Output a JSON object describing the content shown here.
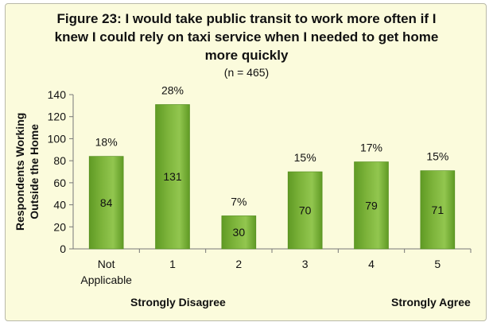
{
  "chart_data": {
    "type": "bar",
    "title_lines": [
      "Figure 23:  I would take public transit to work more often if I",
      "knew I could rely on taxi service when I needed to get home",
      "more quickly"
    ],
    "subtitle": "(n = 465)",
    "ylabel_lines": [
      "Respondents Working",
      "Outside the Home"
    ],
    "xlabel": "",
    "ylim": [
      0,
      140
    ],
    "yticks": [
      0,
      20,
      40,
      60,
      80,
      100,
      120,
      140
    ],
    "categories": [
      "Not Applicable",
      "1",
      "2",
      "3",
      "4",
      "5"
    ],
    "values": [
      84,
      131,
      30,
      70,
      79,
      71
    ],
    "percent_labels": [
      "18%",
      "28%",
      "7%",
      "15%",
      "17%",
      "15%"
    ],
    "scale_left_label": "Strongly Disagree",
    "scale_right_label": "Strongly Agree",
    "bar_color": "#7cb33a",
    "grid": false
  }
}
